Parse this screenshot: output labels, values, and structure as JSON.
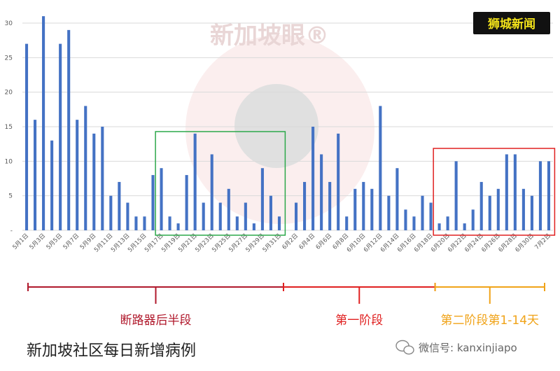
{
  "brand": {
    "text": "狮城新闻",
    "color": "#f2e21a"
  },
  "watermark": {
    "text": "新加坡眼®"
  },
  "caption": "新加坡社区每日新增病例",
  "source_label": "微信号: kanxinjiapo",
  "chart_data": {
    "type": "bar",
    "title": "",
    "xlabel": "",
    "ylabel": "",
    "ylim": [
      0,
      30
    ],
    "yticks": [
      "-",
      "5",
      "10",
      "15",
      "20",
      "25",
      "30"
    ],
    "grid": true,
    "bar_color": "#4472c4",
    "categories": [
      "5月1日",
      "5月2日",
      "5月3日",
      "5月4日",
      "5月5日",
      "5月6日",
      "5月7日",
      "5月8日",
      "5月9日",
      "5月10日",
      "5月11日",
      "5月12日",
      "5月13日",
      "5月14日",
      "5月15日",
      "5月16日",
      "5月17日",
      "5月18日",
      "5月19日",
      "5月20日",
      "5月21日",
      "5月22日",
      "5月23日",
      "5月24日",
      "5月25日",
      "5月26日",
      "5月27日",
      "5月28日",
      "5月29日",
      "5月30日",
      "5月31日",
      "6月1日",
      "6月2日",
      "6月3日",
      "6月4日",
      "6月5日",
      "6月6日",
      "6月7日",
      "6月8日",
      "6月9日",
      "6月10日",
      "6月11日",
      "6月12日",
      "6月13日",
      "6月14日",
      "6月15日",
      "6月16日",
      "6月17日",
      "6月18日",
      "6月19日",
      "6月20日",
      "6月21日",
      "6月22日",
      "6月23日",
      "6月24日",
      "6月25日",
      "6月26日",
      "6月27日",
      "6月28日",
      "6月29日",
      "6月30日",
      "7月1日",
      "7月2日"
    ],
    "x_tick_labels": [
      "5月1日",
      "5月3日",
      "5月5日",
      "5月7日",
      "5月9日",
      "5月11日",
      "5月13日",
      "5月15日",
      "5月17日",
      "5月19日",
      "5月21日",
      "5月23日",
      "5月25日",
      "5月27日",
      "5月29日",
      "5月31日",
      "6月2日",
      "6月4日",
      "6月6日",
      "6月8日",
      "6月10日",
      "6月12日",
      "6月14日",
      "6月16日",
      "6月18日",
      "6月20日",
      "6月22日",
      "6月24日",
      "6月26日",
      "6月28日",
      "6月30日",
      "7月2日"
    ],
    "values": [
      27,
      16,
      31,
      13,
      27,
      29,
      16,
      18,
      14,
      15,
      5,
      7,
      4,
      2,
      2,
      8,
      9,
      2,
      1,
      8,
      14,
      4,
      11,
      4,
      6,
      2,
      4,
      1,
      9,
      5,
      2,
      0,
      4,
      7,
      15,
      11,
      7,
      14,
      2,
      6,
      7,
      6,
      18,
      5,
      9,
      3,
      2,
      5,
      4,
      1,
      2,
      10,
      1,
      3,
      7,
      5,
      6,
      11,
      11,
      6,
      5,
      10,
      10
    ],
    "highlight_boxes": [
      {
        "start": "5月17日",
        "end": "5月31日",
        "color": "#2ca84a"
      },
      {
        "start": "6月19日",
        "end": "7月2日",
        "color": "#e02020"
      }
    ],
    "phases": [
      {
        "label": "断路器后半段",
        "start": "5月1日",
        "end": "5月31日",
        "color": "#b0192c"
      },
      {
        "label": "第一阶段",
        "start": "6月1日",
        "end": "6月18日",
        "color": "#e02020"
      },
      {
        "label": "第二阶段第1-14天",
        "start": "6月19日",
        "end": "7月2日",
        "color": "#f0a318"
      }
    ]
  }
}
